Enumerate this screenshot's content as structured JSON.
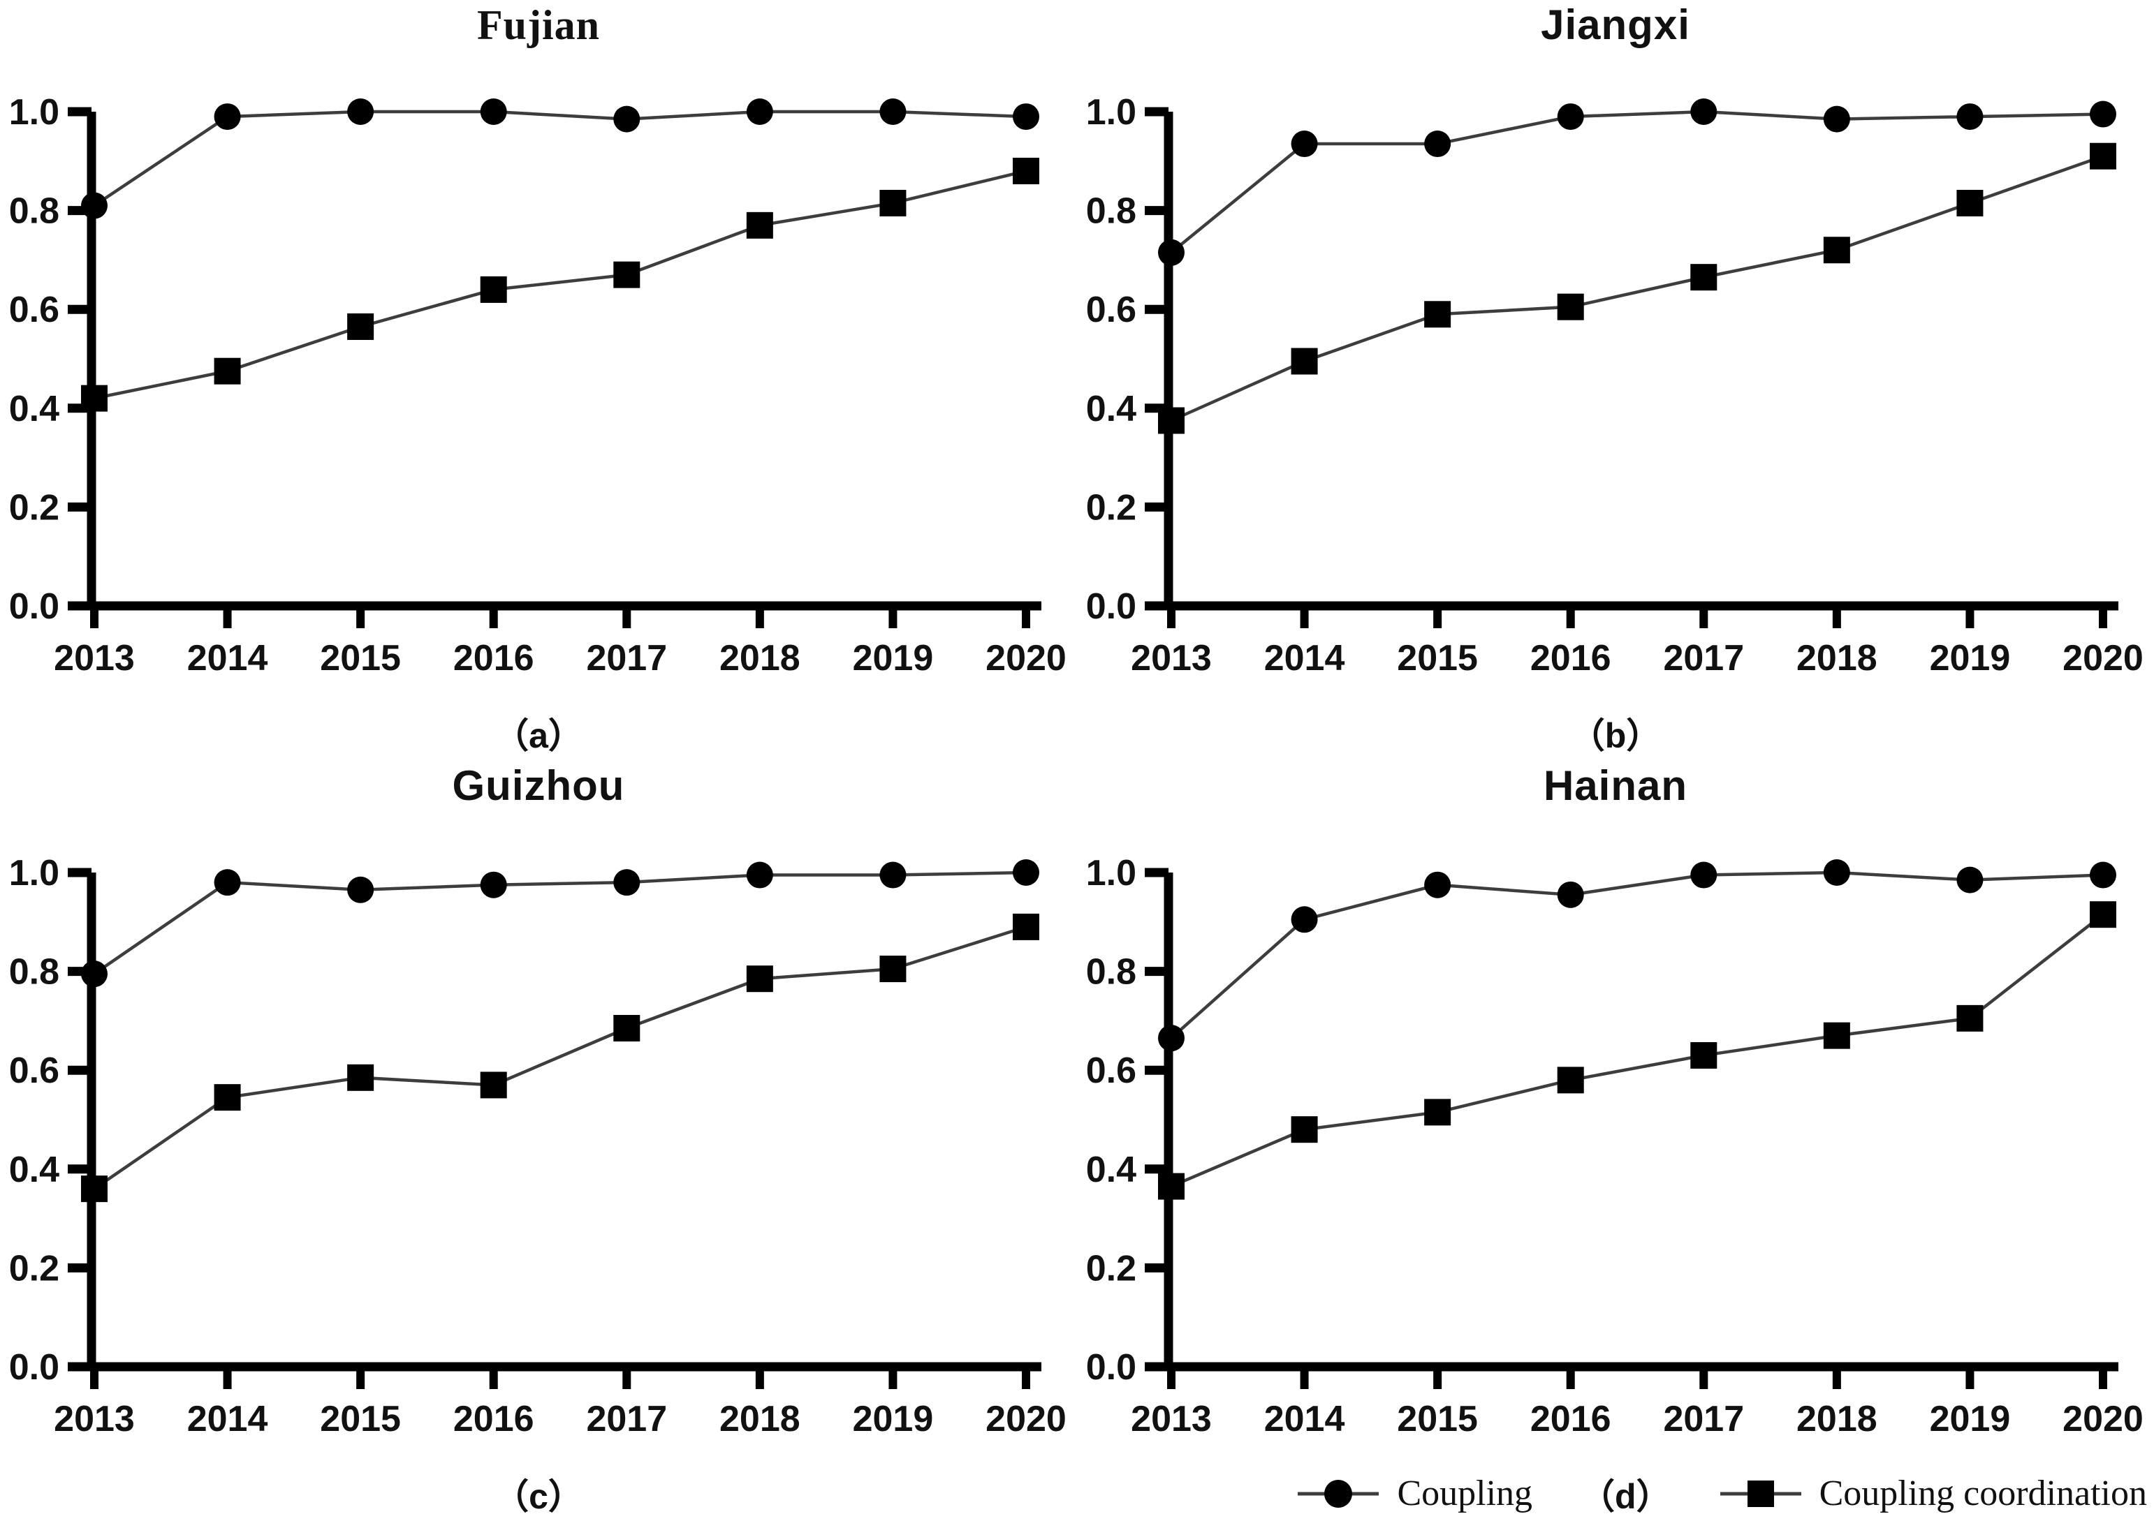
{
  "legend": {
    "items": [
      {
        "label": "Coupling",
        "marker": "circle"
      },
      {
        "label": "Coupling coordination",
        "marker": "square"
      }
    ]
  },
  "colors": {
    "background": "#ffffff",
    "axis": "#000000",
    "line": "#3d3d3d",
    "marker": "#000000"
  },
  "chart_data": [
    {
      "type": "line",
      "title": "Fujian",
      "panel_label": "（a）",
      "x": [
        2013,
        2014,
        2015,
        2016,
        2017,
        2018,
        2019,
        2020
      ],
      "ylim": [
        0.0,
        1.0
      ],
      "yticks": [
        0.0,
        0.2,
        0.4,
        0.6,
        0.8,
        1.0
      ],
      "grid": false,
      "legend_position": "none",
      "series": [
        {
          "name": "Coupling",
          "marker": "circle",
          "values": [
            0.81,
            0.99,
            1.0,
            1.0,
            0.985,
            1.0,
            1.0,
            0.99
          ]
        },
        {
          "name": "Coupling coordination",
          "marker": "square",
          "values": [
            0.42,
            0.475,
            0.565,
            0.64,
            0.67,
            0.77,
            0.815,
            0.88
          ]
        }
      ]
    },
    {
      "type": "line",
      "title": "Jiangxi",
      "panel_label": "（b）",
      "x": [
        2013,
        2014,
        2015,
        2016,
        2017,
        2018,
        2019,
        2020
      ],
      "ylim": [
        0.0,
        1.0
      ],
      "yticks": [
        0.0,
        0.2,
        0.4,
        0.6,
        0.8,
        1.0
      ],
      "grid": false,
      "legend_position": "none",
      "series": [
        {
          "name": "Coupling",
          "marker": "circle",
          "values": [
            0.715,
            0.935,
            0.935,
            0.99,
            1.0,
            0.985,
            0.99,
            0.995
          ]
        },
        {
          "name": "Coupling coordination",
          "marker": "square",
          "values": [
            0.375,
            0.495,
            0.59,
            0.605,
            0.665,
            0.72,
            0.815,
            0.91
          ]
        }
      ]
    },
    {
      "type": "line",
      "title": "Guizhou",
      "panel_label": "（c）",
      "x": [
        2013,
        2014,
        2015,
        2016,
        2017,
        2018,
        2019,
        2020
      ],
      "ylim": [
        0.0,
        1.0
      ],
      "yticks": [
        0.0,
        0.2,
        0.4,
        0.6,
        0.8,
        1.0
      ],
      "grid": false,
      "legend_position": "none",
      "series": [
        {
          "name": "Coupling",
          "marker": "circle",
          "values": [
            0.795,
            0.98,
            0.965,
            0.975,
            0.98,
            0.995,
            0.995,
            1.0
          ]
        },
        {
          "name": "Coupling coordination",
          "marker": "square",
          "values": [
            0.36,
            0.545,
            0.585,
            0.57,
            0.685,
            0.785,
            0.805,
            0.89
          ]
        }
      ]
    },
    {
      "type": "line",
      "title": "Hainan",
      "panel_label": "（d）",
      "x": [
        2013,
        2014,
        2015,
        2016,
        2017,
        2018,
        2019,
        2020
      ],
      "ylim": [
        0.0,
        1.0
      ],
      "yticks": [
        0.0,
        0.2,
        0.4,
        0.6,
        0.8,
        1.0
      ],
      "grid": false,
      "legend_position": "bottom",
      "series": [
        {
          "name": "Coupling",
          "marker": "circle",
          "values": [
            0.665,
            0.905,
            0.975,
            0.955,
            0.995,
            1.0,
            0.985,
            0.995
          ]
        },
        {
          "name": "Coupling coordination",
          "marker": "square",
          "values": [
            0.365,
            0.48,
            0.515,
            0.58,
            0.63,
            0.67,
            0.705,
            0.915
          ]
        }
      ]
    }
  ]
}
